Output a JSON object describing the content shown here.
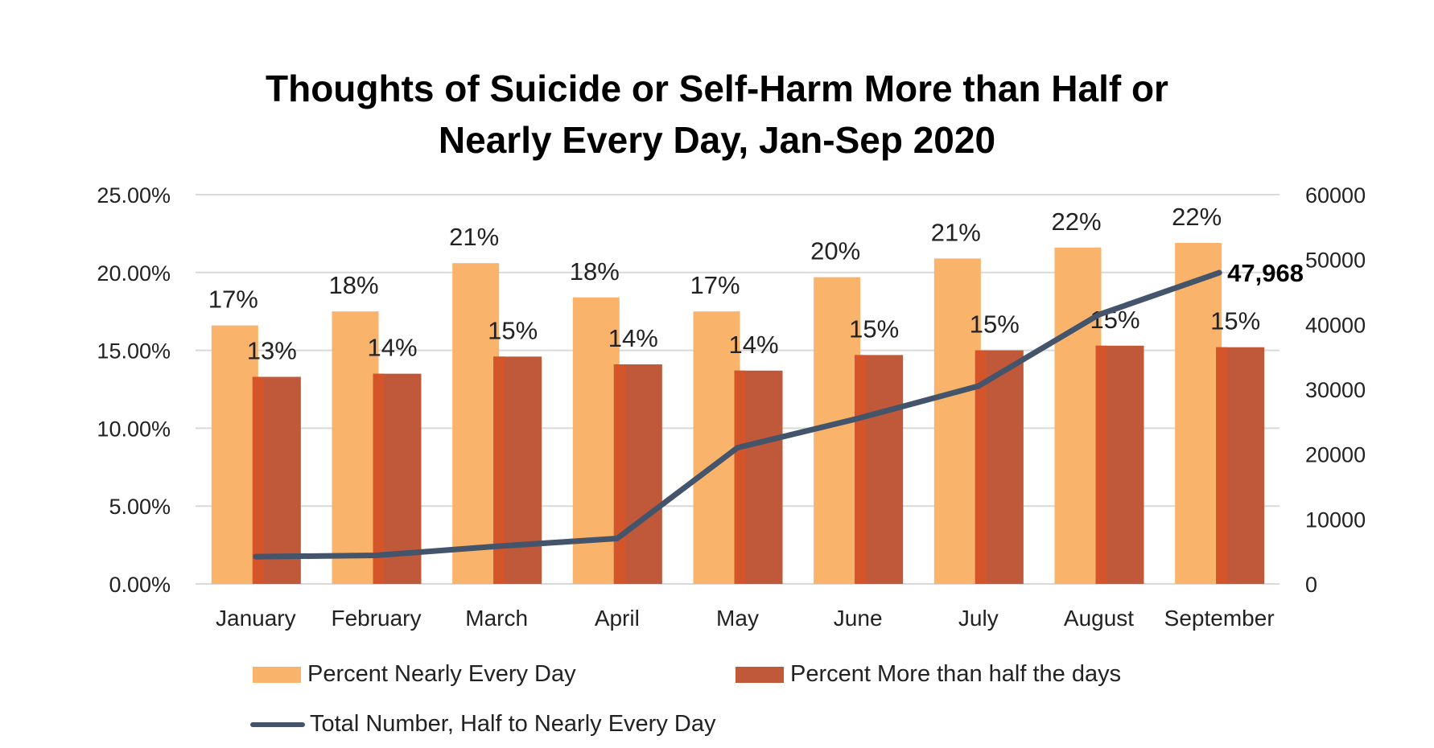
{
  "chart_data": {
    "type": "bar",
    "title": "Thoughts of Suicide or Self-Harm More than Half or Nearly Every Day, Jan-Sep 2020",
    "title_lines": [
      "Thoughts of Suicide or Self-Harm More than Half or",
      "Nearly Every Day, Jan-Sep 2020"
    ],
    "categories": [
      "January",
      "February",
      "March",
      "April",
      "May",
      "June",
      "July",
      "August",
      "September"
    ],
    "y_left": {
      "ylim": [
        0,
        0.25
      ],
      "ticks": [
        0,
        0.05,
        0.1,
        0.15,
        0.2,
        0.25
      ],
      "tick_labels": [
        "0.00%",
        "5.00%",
        "10.00%",
        "15.00%",
        "20.00%",
        "25.00%"
      ]
    },
    "y_right": {
      "ylim": [
        0,
        60000
      ],
      "ticks": [
        0,
        10000,
        20000,
        30000,
        40000,
        50000,
        60000
      ],
      "tick_labels": [
        "0",
        "10000",
        "20000",
        "30000",
        "40000",
        "50000",
        "60000"
      ]
    },
    "grid": true,
    "legend_position": "bottom",
    "series": [
      {
        "name": "Percent Nearly Every Day",
        "type": "bar",
        "axis": "left",
        "color": "#F9B36B",
        "values": [
          0.166,
          0.175,
          0.206,
          0.184,
          0.175,
          0.197,
          0.209,
          0.216,
          0.219
        ],
        "data_labels": [
          "17%",
          "18%",
          "21%",
          "18%",
          "17%",
          "20%",
          "21%",
          "22%",
          "22%"
        ]
      },
      {
        "name": "Percent More than half the days",
        "type": "bar",
        "axis": "left",
        "color": "#C0583A",
        "accent_color": "#D4552A",
        "values": [
          0.133,
          0.135,
          0.146,
          0.141,
          0.137,
          0.147,
          0.15,
          0.153,
          0.152
        ],
        "data_labels": [
          "13%",
          "14%",
          "15%",
          "14%",
          "14%",
          "15%",
          "15%",
          "15%",
          "15%"
        ]
      },
      {
        "name": "Total Number, Half to Nearly Every Day",
        "type": "line",
        "axis": "right",
        "color": "#44546A",
        "values": [
          4200,
          4400,
          5800,
          7000,
          21000,
          25500,
          30500,
          41500,
          47968
        ],
        "end_label": "47,968"
      }
    ]
  },
  "colors": {
    "grid": "#D9D9D9",
    "text": "#222222"
  }
}
